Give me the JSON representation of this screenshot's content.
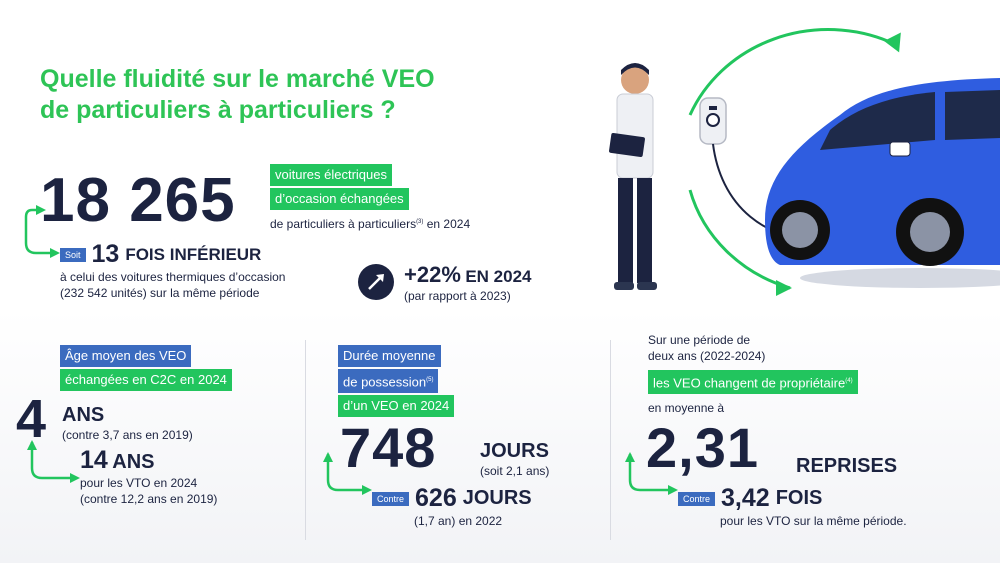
{
  "title": {
    "line1": "Quelle fluidité sur le marché VEO",
    "line2": "de particuliers à particuliers ?"
  },
  "colors": {
    "green": "#22c55e",
    "blue": "#3b6bbf",
    "navy": "#1c2340",
    "car": "#2f5de0"
  },
  "hero": {
    "number": "18 265",
    "tag1": "voitures électriques",
    "tag2": "d’occasion échangées",
    "line3": "de particuliers à particuliers",
    "sup": "(3)",
    "line3_end": " en 2024"
  },
  "compare": {
    "badge": "Soit",
    "number": "13",
    "label": "FOIS INFÉRIEUR",
    "line1": "à celui des voitures thermiques d’occasion",
    "line2": "(232 542 unités) sur la même période"
  },
  "growth": {
    "icon": "trend-up-arrow-icon",
    "value": "+22%",
    "label": "EN 2024",
    "sub": "(par rapport à 2023)"
  },
  "age": {
    "tag1": "Âge moyen des VEO",
    "tag2": "échangées en C2C en 2024",
    "number": "4",
    "unit": "ANS",
    "note": "(contre 3,7 ans en 2019)",
    "vto_number": "14",
    "vto_unit": "ANS",
    "vto_line1": "pour les VTO en 2024",
    "vto_line2": "(contre 12,2 ans en 2019)"
  },
  "duration": {
    "tag1": "Durée moyenne",
    "tag2": "de possession",
    "sup": "(5)",
    "tag3": "d’un VEO en 2024",
    "number": "748",
    "unit": "JOURS",
    "note": "(soit 2,1 ans)",
    "badge": "Contre",
    "vto_number": "626",
    "vto_unit": "JOURS",
    "vto_note": "(1,7 an) en 2022"
  },
  "owners": {
    "line1": "Sur une période de",
    "line2": "deux ans (2022-2024)",
    "tag": "les VEO changent de propriétaire",
    "sup": "(4)",
    "line3": "en moyenne à",
    "number": "2,31",
    "unit": "REPRISES",
    "badge": "Contre",
    "vto_number": "3,42",
    "vto_unit": "FOIS",
    "vto_note": "pour les VTO sur la même période."
  }
}
